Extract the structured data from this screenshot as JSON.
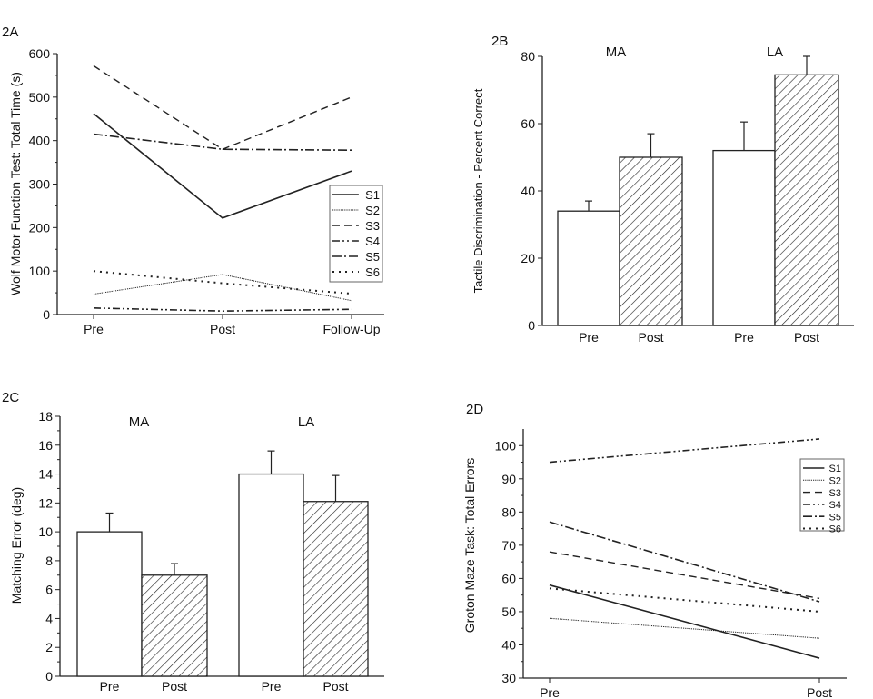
{
  "chart_data": [
    {
      "panel": "2A",
      "type": "line",
      "ylabel": "Wolf Motor Function Test: Total Time (s)",
      "xlabel": "",
      "categories": [
        "Pre",
        "Post",
        "Follow-Up"
      ],
      "ylim": [
        0,
        600
      ],
      "yticks": [
        0,
        100,
        200,
        300,
        400,
        500,
        600
      ],
      "legend_position": "right",
      "series": [
        {
          "name": "S1",
          "style": "solid",
          "values": [
            462,
            222,
            330
          ]
        },
        {
          "name": "S2",
          "style": "dotted-fine",
          "values": [
            47,
            92,
            32
          ]
        },
        {
          "name": "S3",
          "style": "dash",
          "values": [
            572,
            380,
            500
          ]
        },
        {
          "name": "S4",
          "style": "dash-dot-dot",
          "values": [
            15,
            8,
            12
          ]
        },
        {
          "name": "S5",
          "style": "dash-dot",
          "values": [
            415,
            380,
            378
          ]
        },
        {
          "name": "S6",
          "style": "dot",
          "values": [
            100,
            72,
            48
          ]
        }
      ]
    },
    {
      "panel": "2B",
      "type": "bar",
      "ylabel": "Tactile Discrimination - Percent Correct",
      "groups": [
        "MA",
        "LA"
      ],
      "categories": [
        "Pre",
        "Post"
      ],
      "ylim": [
        0,
        80
      ],
      "yticks": [
        0,
        20,
        40,
        60,
        80
      ],
      "series": [
        {
          "group": "MA",
          "category": "Pre",
          "value": 34,
          "error_top": 37
        },
        {
          "group": "MA",
          "category": "Post",
          "value": 50,
          "error_top": 57
        },
        {
          "group": "LA",
          "category": "Pre",
          "value": 52,
          "error_top": 60.5
        },
        {
          "group": "LA",
          "category": "Post",
          "value": 74.5,
          "error_top": 80
        }
      ]
    },
    {
      "panel": "2C",
      "type": "bar",
      "ylabel": "Matching Error (deg)",
      "groups": [
        "MA",
        "LA"
      ],
      "categories": [
        "Pre",
        "Post"
      ],
      "ylim": [
        0,
        18
      ],
      "yticks": [
        0,
        2,
        4,
        6,
        8,
        10,
        12,
        14,
        16,
        18
      ],
      "series": [
        {
          "group": "MA",
          "category": "Pre",
          "value": 10,
          "error_top": 11.3
        },
        {
          "group": "MA",
          "category": "Post",
          "value": 7,
          "error_top": 7.8
        },
        {
          "group": "LA",
          "category": "Pre",
          "value": 14,
          "error_top": 15.6
        },
        {
          "group": "LA",
          "category": "Post",
          "value": 12.1,
          "error_top": 13.9
        }
      ]
    },
    {
      "panel": "2D",
      "type": "line",
      "ylabel": "Groton Maze Task: Total Errors",
      "xlabel": "",
      "categories": [
        "Pre",
        "Post"
      ],
      "ylim": [
        30,
        105
      ],
      "yticks": [
        30,
        40,
        50,
        60,
        70,
        80,
        90,
        100
      ],
      "legend_position": "top-right",
      "series": [
        {
          "name": "S1",
          "style": "solid",
          "values": [
            58,
            36
          ]
        },
        {
          "name": "S2",
          "style": "dotted-fine",
          "values": [
            48,
            42
          ]
        },
        {
          "name": "S3",
          "style": "dash",
          "values": [
            68,
            54
          ]
        },
        {
          "name": "S4",
          "style": "dash-dot-dot",
          "values": [
            95,
            102
          ]
        },
        {
          "name": "S5",
          "style": "dash-dot",
          "values": [
            77,
            53
          ]
        },
        {
          "name": "S6",
          "style": "dot",
          "values": [
            57,
            50
          ]
        }
      ]
    }
  ]
}
